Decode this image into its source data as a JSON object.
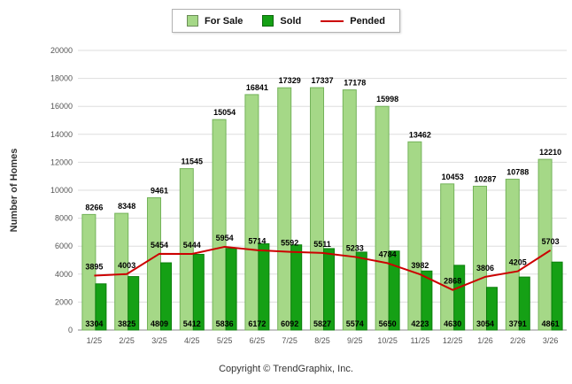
{
  "legend": {
    "for_sale": "For Sale",
    "sold": "Sold",
    "pended": "Pended"
  },
  "ylabel": "Number of Homes",
  "footer": "Copyright © TrendGraphix, Inc.",
  "colors": {
    "for_sale_fill": "#A5D887",
    "for_sale_border": "#74B35A",
    "sold_fill": "#15A015",
    "sold_border": "#0C7F0C",
    "pended_line": "#CC0000",
    "grid": "#DDDDDD",
    "axis": "#8A8A8A",
    "tick_text": "#555555",
    "value_text": "#000000"
  },
  "chart_data": {
    "type": "bar",
    "title": "",
    "xlabel": "",
    "ylabel": "Number of Homes",
    "ylim": [
      0,
      20000
    ],
    "ytick_step": 2000,
    "grid": true,
    "legend_position": "top",
    "categories": [
      "1/25",
      "2/25",
      "3/25",
      "4/25",
      "5/25",
      "6/25",
      "7/25",
      "8/25",
      "9/25",
      "10/25",
      "11/25",
      "12/25",
      "1/26",
      "2/26",
      "3/26"
    ],
    "series": [
      {
        "name": "For Sale",
        "type": "bar",
        "color": "#A5D887",
        "values": [
          8266,
          8348,
          9461,
          11545,
          15054,
          16841,
          17329,
          17337,
          17178,
          15998,
          13462,
          10453,
          10287,
          10788,
          12210
        ]
      },
      {
        "name": "Sold",
        "type": "bar",
        "color": "#15A015",
        "values": [
          3304,
          3825,
          4809,
          5412,
          5836,
          6172,
          6092,
          5827,
          5574,
          5650,
          4223,
          4630,
          3054,
          3791,
          4861
        ]
      },
      {
        "name": "Pended",
        "type": "line",
        "color": "#CC0000",
        "values": [
          3895,
          4003,
          5454,
          5444,
          5954,
          5714,
          5592,
          5511,
          5233,
          4784,
          3982,
          2868,
          3806,
          4205,
          5703
        ]
      }
    ]
  }
}
